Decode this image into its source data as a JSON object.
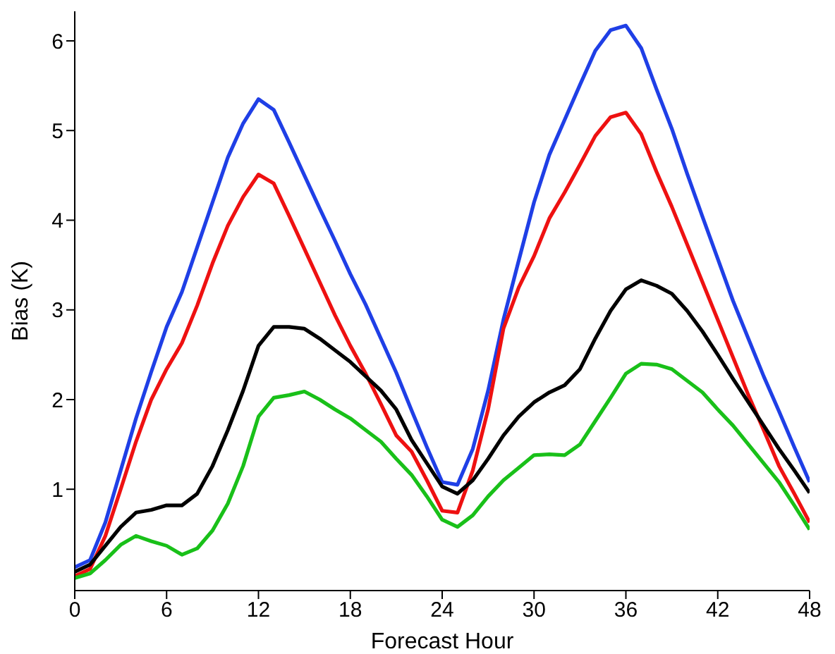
{
  "chart_data": {
    "type": "line",
    "xlabel": "Forecast Hour",
    "ylabel": "Bias (K)",
    "x": [
      0,
      1,
      2,
      3,
      4,
      5,
      6,
      7,
      8,
      9,
      10,
      11,
      12,
      13,
      14,
      15,
      16,
      17,
      18,
      19,
      20,
      21,
      22,
      23,
      24,
      25,
      26,
      27,
      28,
      29,
      30,
      31,
      32,
      33,
      34,
      35,
      36,
      37,
      38,
      39,
      40,
      41,
      42,
      43,
      44,
      45,
      46,
      47,
      48
    ],
    "series": [
      {
        "color": "#1f3fe6",
        "values": [
          0.13,
          0.21,
          0.63,
          1.21,
          1.79,
          2.31,
          2.81,
          3.2,
          3.7,
          4.2,
          4.7,
          5.08,
          5.35,
          5.23,
          4.87,
          4.5,
          4.13,
          3.77,
          3.4,
          3.06,
          2.68,
          2.3,
          1.88,
          1.47,
          1.08,
          1.05,
          1.45,
          2.1,
          2.89,
          3.55,
          4.2,
          4.73,
          5.12,
          5.51,
          5.89,
          6.12,
          6.17,
          5.92,
          5.46,
          5.02,
          4.52,
          4.04,
          3.57,
          3.1,
          2.68,
          2.26,
          1.87,
          1.47,
          1.08
        ]
      },
      {
        "color": "#ee1111",
        "values": [
          0.03,
          0.11,
          0.48,
          1.0,
          1.53,
          2.0,
          2.34,
          2.63,
          3.05,
          3.52,
          3.94,
          4.26,
          4.51,
          4.41,
          4.05,
          3.68,
          3.31,
          2.94,
          2.6,
          2.29,
          1.95,
          1.6,
          1.42,
          1.1,
          0.76,
          0.74,
          1.21,
          1.89,
          2.79,
          3.25,
          3.6,
          4.02,
          4.31,
          4.62,
          4.94,
          5.15,
          5.2,
          4.96,
          4.54,
          4.15,
          3.73,
          3.31,
          2.89,
          2.47,
          2.05,
          1.66,
          1.26,
          0.95,
          0.63
        ]
      },
      {
        "color": "#000000",
        "values": [
          0.08,
          0.16,
          0.37,
          0.58,
          0.74,
          0.77,
          0.82,
          0.82,
          0.95,
          1.26,
          1.66,
          2.1,
          2.6,
          2.81,
          2.81,
          2.79,
          2.68,
          2.55,
          2.42,
          2.26,
          2.1,
          1.89,
          1.55,
          1.29,
          1.03,
          0.95,
          1.1,
          1.34,
          1.6,
          1.81,
          1.97,
          2.08,
          2.16,
          2.34,
          2.68,
          2.99,
          3.23,
          3.33,
          3.27,
          3.18,
          2.99,
          2.76,
          2.5,
          2.23,
          1.97,
          1.71,
          1.45,
          1.21,
          0.96
        ]
      },
      {
        "color": "#19c019",
        "values": [
          0.01,
          0.06,
          0.21,
          0.38,
          0.48,
          0.42,
          0.37,
          0.27,
          0.34,
          0.54,
          0.84,
          1.26,
          1.81,
          2.02,
          2.05,
          2.09,
          2.0,
          1.89,
          1.79,
          1.66,
          1.53,
          1.34,
          1.16,
          0.92,
          0.66,
          0.58,
          0.71,
          0.92,
          1.1,
          1.24,
          1.38,
          1.39,
          1.38,
          1.5,
          1.76,
          2.02,
          2.29,
          2.4,
          2.39,
          2.34,
          2.21,
          2.08,
          1.89,
          1.71,
          1.5,
          1.29,
          1.08,
          0.82,
          0.55
        ]
      }
    ],
    "xlim": [
      0,
      48
    ],
    "xticks": [
      0,
      6,
      12,
      18,
      24,
      30,
      36,
      42,
      48
    ],
    "ylim": [
      -0.13,
      6.33
    ],
    "yticks": [
      1,
      2,
      3,
      4,
      5,
      6
    ],
    "grid": false,
    "legend": false,
    "marker": "none",
    "line_style": "solid"
  }
}
